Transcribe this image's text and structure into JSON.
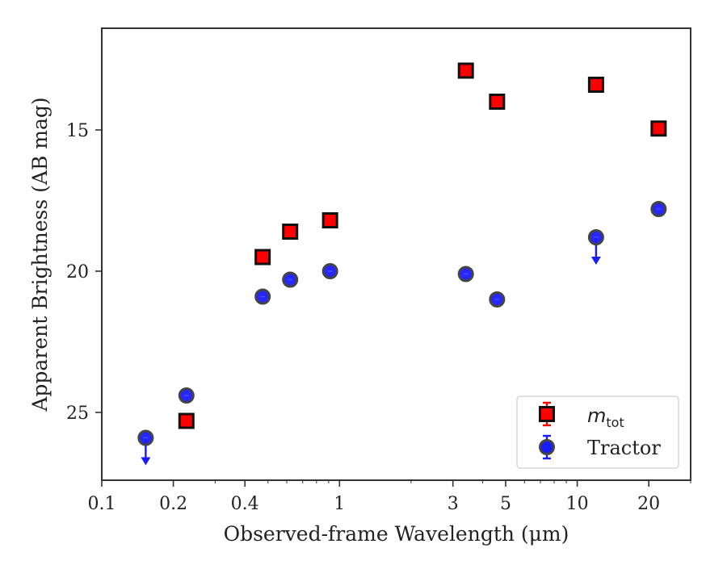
{
  "chart_data": {
    "type": "scatter",
    "xlabel": "Observed-frame Wavelength (μm)",
    "ylabel": "Apparent Brightness (AB mag)",
    "xscale": "log",
    "xlim": [
      0.1,
      30
    ],
    "ylim": [
      27.4,
      11.4
    ],
    "y_inverted": true,
    "x_ticks": [
      {
        "value": 0.1,
        "label": "0.1"
      },
      {
        "value": 0.2,
        "label": "0.2"
      },
      {
        "value": 0.4,
        "label": "0.4"
      },
      {
        "value": 1,
        "label": "1"
      },
      {
        "value": 3,
        "label": "3"
      },
      {
        "value": 5,
        "label": "5"
      },
      {
        "value": 10,
        "label": "10"
      },
      {
        "value": 20,
        "label": "20"
      }
    ],
    "y_ticks": [
      {
        "value": 15,
        "label": "15"
      },
      {
        "value": 20,
        "label": "20"
      },
      {
        "value": 25,
        "label": "25"
      }
    ],
    "grid": false,
    "legend_position": "lower-right",
    "series": [
      {
        "name": "m_tot",
        "legend_label": "m",
        "legend_sub": "tot",
        "marker": "square",
        "color": "#ff0000",
        "edge_color": "#111111",
        "points": [
          {
            "x": 0.227,
            "y": 25.3
          },
          {
            "x": 0.475,
            "y": 19.5
          },
          {
            "x": 0.62,
            "y": 18.6
          },
          {
            "x": 0.913,
            "y": 18.2
          },
          {
            "x": 3.4,
            "y": 12.9
          },
          {
            "x": 4.6,
            "y": 14.0
          },
          {
            "x": 12.0,
            "y": 13.4
          },
          {
            "x": 22.0,
            "y": 14.95
          }
        ]
      },
      {
        "name": "Tractor",
        "legend_label": "Tractor",
        "marker": "circle",
        "color": "#1a1aff",
        "edge_color": "#444444",
        "points": [
          {
            "x": 0.153,
            "y": 25.9,
            "upper_limit": true
          },
          {
            "x": 0.227,
            "y": 24.4
          },
          {
            "x": 0.475,
            "y": 20.9
          },
          {
            "x": 0.62,
            "y": 20.3
          },
          {
            "x": 0.913,
            "y": 20.0
          },
          {
            "x": 3.4,
            "y": 20.1
          },
          {
            "x": 4.6,
            "y": 21.0
          },
          {
            "x": 12.0,
            "y": 18.8,
            "upper_limit": true
          },
          {
            "x": 22.0,
            "y": 17.8
          }
        ]
      }
    ]
  }
}
